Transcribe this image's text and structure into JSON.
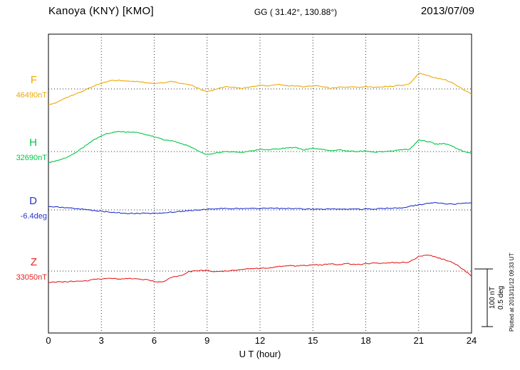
{
  "header": {
    "title": "Kanoya (KNY)  [KMO]",
    "coords": "GG ( 31.42°, 130.88°)",
    "date": "2013/07/09"
  },
  "scale_bar": {
    "nt_label": "100 nT",
    "deg_label": "0.5 deg"
  },
  "footer_note": "Plotted at 2013/11/12 09:33 UT",
  "chart_data": {
    "type": "line",
    "title": "Kanoya (KNY) [KMO] magnetogram 2013/07/09",
    "xlabel": "U T (hour)",
    "x_range": [
      0,
      24
    ],
    "x_ticks": [
      0,
      3,
      6,
      9,
      12,
      15,
      18,
      21,
      24
    ],
    "x_step_hours": 0.5,
    "grid": "dotted vertical lines every 3 h; dotted horizontal baseline per component",
    "scale": {
      "per_division_nT": 100,
      "per_division_deg": 0.5
    },
    "series": [
      {
        "name": "F",
        "unit": "nT",
        "baseline": 46490,
        "baseline_label": "46490nT",
        "color": "#f0a800",
        "offsets": [
          -28,
          -23,
          -16,
          -9,
          -3,
          4,
          10,
          14,
          15,
          14,
          13,
          11,
          10,
          11,
          13,
          10,
          8,
          1,
          -5,
          -1,
          4,
          3,
          1,
          4,
          6,
          5,
          8,
          6,
          5,
          4,
          6,
          4,
          1,
          3,
          4,
          3,
          4,
          3,
          4,
          5,
          6,
          9,
          28,
          24,
          19,
          16,
          9,
          0,
          -10
        ]
      },
      {
        "name": "H",
        "unit": "nT",
        "baseline": 32690,
        "baseline_label": "32690nT",
        "color": "#00c846",
        "offsets": [
          -19,
          -16,
          -11,
          -3,
          8,
          19,
          28,
          33,
          35,
          34,
          33,
          30,
          26,
          21,
          19,
          14,
          9,
          1,
          -5,
          -3,
          0,
          -1,
          -1,
          1,
          4,
          3,
          5,
          6,
          8,
          3,
          6,
          4,
          1,
          3,
          1,
          0,
          1,
          -1,
          0,
          1,
          3,
          4,
          21,
          18,
          13,
          14,
          8,
          1,
          -4
        ]
      },
      {
        "name": "D",
        "unit": "deg",
        "baseline": -6.4,
        "baseline_label": "-6.4deg",
        "color": "#2335cc",
        "offsets": [
          0.031,
          0.025,
          0.019,
          0.013,
          0.006,
          -0.006,
          -0.013,
          -0.019,
          -0.025,
          -0.031,
          -0.031,
          -0.031,
          -0.031,
          -0.025,
          -0.019,
          -0.013,
          -0.006,
          0,
          0.006,
          0.009,
          0.013,
          0.013,
          0.013,
          0.013,
          0.013,
          0.013,
          0.013,
          0.013,
          0.013,
          0.009,
          0.006,
          0.006,
          0.006,
          0.006,
          0.006,
          0.006,
          0.006,
          0.009,
          0.013,
          0.016,
          0.019,
          0.031,
          0.044,
          0.056,
          0.063,
          0.056,
          0.05,
          0.056,
          0.063
        ]
      },
      {
        "name": "Z",
        "unit": "nT",
        "baseline": 33050,
        "baseline_label": "33050nT",
        "color": "#e62222",
        "offsets": [
          -20,
          -19,
          -19,
          -18,
          -18,
          -15,
          -14,
          -13,
          -14,
          -13,
          -14,
          -15,
          -18,
          -19,
          -11,
          -8,
          -1,
          1,
          1,
          -1,
          0,
          1,
          3,
          4,
          5,
          6,
          8,
          9,
          9,
          10,
          11,
          11,
          13,
          11,
          13,
          11,
          13,
          14,
          14,
          15,
          15,
          16,
          26,
          29,
          24,
          20,
          14,
          4,
          -9
        ]
      }
    ]
  }
}
